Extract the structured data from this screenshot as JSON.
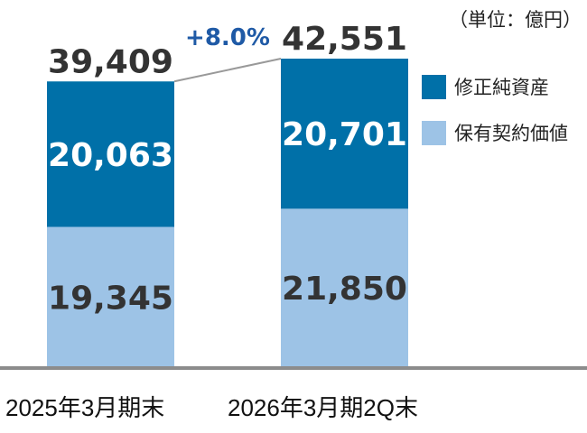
{
  "chart_data": {
    "type": "bar",
    "stacked": true,
    "unit_label": "（単位：億円）",
    "categories": [
      "2025年3月期末",
      "2026年3月期2Q末"
    ],
    "series": [
      {
        "name": "保有契約価値",
        "values": [
          19345,
          21850
        ],
        "labels": [
          "19,345",
          "21,850"
        ],
        "color": "#9DC3E6"
      },
      {
        "name": "修正純資産",
        "values": [
          20063,
          20701
        ],
        "labels": [
          "20,063",
          "20,701"
        ],
        "color": "#0070A8"
      }
    ],
    "totals": [
      39409,
      42551
    ],
    "total_labels": [
      "39,409",
      "42,551"
    ],
    "growth_label": "+8.0%",
    "growth_color": "#1F5AA6",
    "legend_placement": "right",
    "grid": false
  }
}
